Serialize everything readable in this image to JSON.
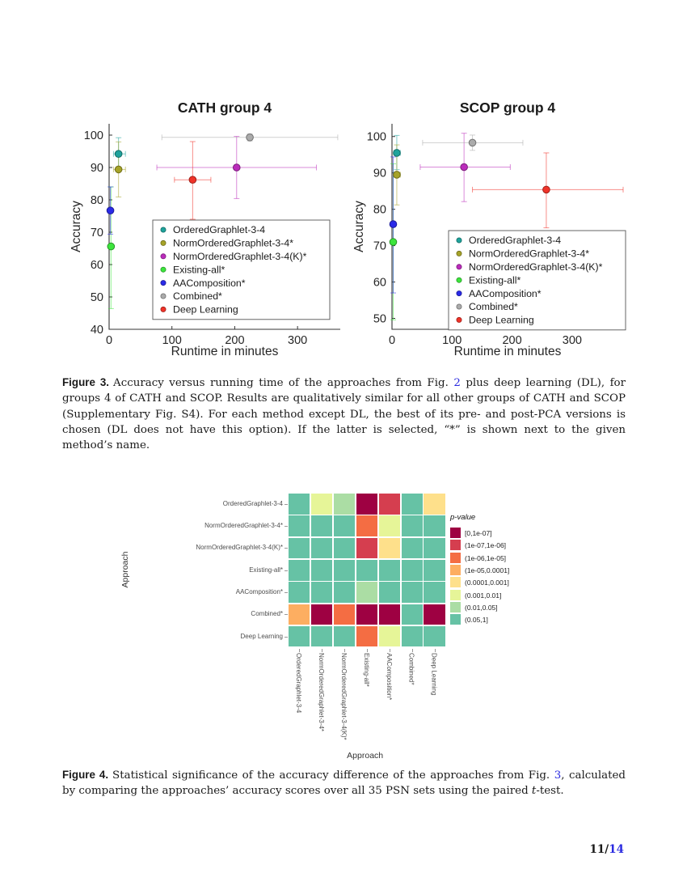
{
  "theme": {
    "link_color": "#2a2ae0",
    "accent_teal": "#1FA39C",
    "accent_maroon": "#9E0142"
  },
  "figure3": {
    "caption": {
      "label": "Figure 3.",
      "before_link": "Accuracy versus running time of the approaches from Fig. ",
      "link": "2",
      "after_link": " plus deep learning (DL), for groups 4 of CATH and SCOP. Results are qualitatively similar for all other groups of CATH and SCOP (Supplementary Fig. S4). For each method except DL, the best of its pre- and post-PCA versions is chosen (DL does not have this option). If the latter is selected, “*” is shown next to the given method’s name."
    }
  },
  "figure4": {
    "caption": {
      "label": "Figure 4.",
      "before_link": "Statistical significance of the accuracy difference of the approaches from Fig. ",
      "link": "3",
      "after_link": ", calculated by comparing the approaches’ accuracy scores over all 35 PSN sets using the paired ",
      "italic_word": "t",
      "after_italic": "-test."
    }
  },
  "footer": {
    "page": "11/",
    "page_link": "14"
  },
  "chart_data": [
    {
      "type": "scatter",
      "title": "CATH group 4",
      "xlabel": "Runtime in minutes",
      "ylabel": "Accuracy",
      "xlim": [
        0,
        368
      ],
      "ylim": [
        40,
        103.5
      ],
      "xticks": [
        0,
        100,
        200,
        300
      ],
      "yticks": [
        40,
        50,
        60,
        70,
        80,
        90,
        100
      ],
      "legend_position": "inside-lower-right",
      "series": [
        {
          "name": "OrderedGraphlet-3-4",
          "color": "#1FA39C",
          "x": 15,
          "y": 94.2,
          "xerr": [
            7,
            26
          ],
          "yerr": [
            89.3,
            99.2
          ]
        },
        {
          "name": "NormOrderedGraphlet-3-4*",
          "color": "#A6A328",
          "x": 15,
          "y": 89.4,
          "xerr": [
            7,
            26
          ],
          "yerr": [
            80.9,
            97.9
          ]
        },
        {
          "name": "NormOrderedGraphlet-3-4(K)*",
          "color": "#BB2BBB",
          "x": 203,
          "y": 90.0,
          "xerr": [
            76,
            330
          ],
          "yerr": [
            80.4,
            99.6
          ]
        },
        {
          "name": "Existing-all*",
          "color": "#3CE53C",
          "x": 3,
          "y": 65.6,
          "xerr": [
            1,
            6
          ],
          "yerr": [
            46.4,
            84.0
          ]
        },
        {
          "name": "AAComposition*",
          "color": "#2A2AE8",
          "x": 2,
          "y": 76.7,
          "xerr": [
            1,
            4
          ],
          "yerr": [
            69.4,
            84.0
          ]
        },
        {
          "name": "Combined*",
          "color": "#ABABAB",
          "x": 224,
          "y": 99.3,
          "xerr": [
            84,
            364
          ],
          "yerr": [
            98.2,
            100.4
          ]
        },
        {
          "name": "Deep Learning",
          "color": "#F03228",
          "x": 133,
          "y": 86.2,
          "xerr": [
            104,
            162
          ],
          "yerr": [
            74.0,
            98.0
          ]
        }
      ]
    },
    {
      "type": "scatter",
      "title": "SCOP group 4",
      "xlabel": "Runtime in minutes",
      "ylabel": "Accuracy",
      "xlim": [
        0,
        385
      ],
      "ylim": [
        47,
        103.5
      ],
      "xticks": [
        0,
        100,
        200,
        300
      ],
      "yticks": [
        50,
        60,
        70,
        80,
        90,
        100
      ],
      "legend_position": "inside-lower-right",
      "series": [
        {
          "name": "OrderedGraphlet-3-4",
          "color": "#1FA39C",
          "x": 8,
          "y": 95.5,
          "xerr": [
            3,
            14
          ],
          "yerr": [
            90.9,
            100.3
          ]
        },
        {
          "name": "NormOrderedGraphlet-3-4*",
          "color": "#A6A328",
          "x": 8,
          "y": 89.5,
          "xerr": [
            3,
            14
          ],
          "yerr": [
            81.2,
            97.7
          ]
        },
        {
          "name": "NormOrderedGraphlet-3-4(K)*",
          "color": "#BB2BBB",
          "x": 120,
          "y": 91.6,
          "xerr": [
            47,
            197
          ],
          "yerr": [
            82.1,
            100.9
          ]
        },
        {
          "name": "Existing-all*",
          "color": "#3CE53C",
          "x": 2,
          "y": 71.0,
          "xerr": [
            1,
            4
          ],
          "yerr": [
            49.6,
            92.5
          ]
        },
        {
          "name": "AAComposition*",
          "color": "#2A2AE8",
          "x": 2,
          "y": 75.9,
          "xerr": [
            1,
            4
          ],
          "yerr": [
            57.0,
            94.4
          ]
        },
        {
          "name": "Combined*",
          "color": "#ABABAB",
          "x": 134,
          "y": 98.3,
          "xerr": [
            51,
            218
          ],
          "yerr": [
            96.2,
            100.4
          ]
        },
        {
          "name": "Deep Learning",
          "color": "#F03228",
          "x": 257,
          "y": 85.4,
          "xerr": [
            134,
            385
          ],
          "yerr": [
            74.9,
            95.5
          ]
        }
      ]
    },
    {
      "type": "heatmap",
      "xlabel": "Approach",
      "ylabel": "Approach",
      "legend_title": "p-value",
      "rows": [
        "OrderedGraphlet-3-4",
        "NormOrderedGraphlet-3-4*",
        "NormOrderedGraphlet-3-4(K)*",
        "Existing-all*",
        "AAComposition*",
        "Combined*",
        "Deep Learning"
      ],
      "cols": [
        "OrderedGraphlet-3-4",
        "NormOrderedGraphlet-3-4*",
        "NormOrderedGraphlet-3-4(K)*",
        "Existing-all*",
        "AAComposition*",
        "Combined*",
        "Deep Learning"
      ],
      "legend_bins": [
        {
          "label": "[0,1e-07]",
          "color": "#9E0142"
        },
        {
          "label": "(1e-07,1e-06]",
          "color": "#D53E4F"
        },
        {
          "label": "(1e-06,1e-05]",
          "color": "#F46D43"
        },
        {
          "label": "(1e-05,0.0001]",
          "color": "#FDAE61"
        },
        {
          "label": "(0.0001,0.001]",
          "color": "#FEE08B"
        },
        {
          "label": "(0.001,0.01]",
          "color": "#E6F598"
        },
        {
          "label": "(0.01,0.05]",
          "color": "#ABDDA4"
        },
        {
          "label": "(0.05,1]",
          "color": "#66C2A5"
        }
      ],
      "cells": [
        [
          7,
          5,
          6,
          0,
          1,
          7,
          4
        ],
        [
          7,
          7,
          7,
          2,
          5,
          7,
          7
        ],
        [
          7,
          7,
          7,
          1,
          4,
          7,
          7
        ],
        [
          7,
          7,
          7,
          7,
          7,
          7,
          7
        ],
        [
          7,
          7,
          7,
          6,
          7,
          7,
          7
        ],
        [
          3,
          0,
          2,
          0,
          0,
          7,
          0
        ],
        [
          7,
          7,
          7,
          2,
          5,
          7,
          7
        ]
      ]
    }
  ]
}
